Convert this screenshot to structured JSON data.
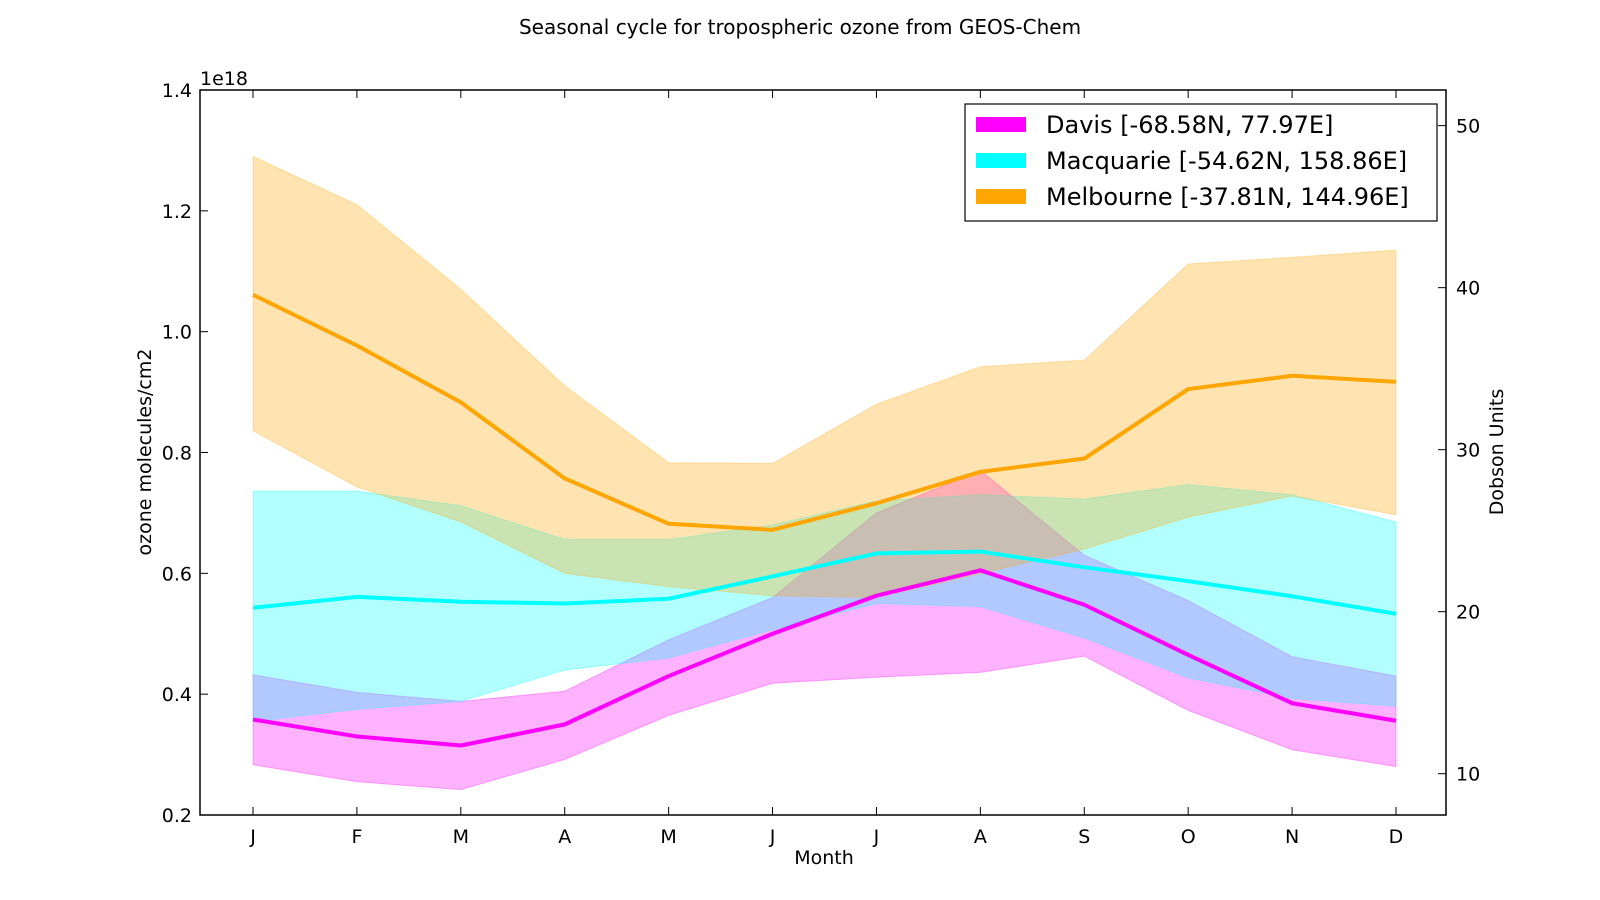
{
  "chart_data": {
    "type": "line",
    "title": "Seasonal cycle for tropospheric ozone from GEOS-Chem",
    "xlabel": "Month",
    "ylabel": "ozone molecules/cm2",
    "y_offset_label": "1e18",
    "y2label": "Dobson Units",
    "categories": [
      "J",
      "F",
      "M",
      "A",
      "M",
      "J",
      "J",
      "A",
      "S",
      "O",
      "N",
      "D"
    ],
    "ylim": [
      0.2,
      1.4
    ],
    "yticks": [
      "0.2",
      "0.4",
      "0.6",
      "0.8",
      "1.0",
      "1.2",
      "1.4"
    ],
    "y2lim": [
      7.45,
      52.2
    ],
    "y2ticks": [
      "10",
      "20",
      "30",
      "40",
      "50"
    ],
    "grid": false,
    "legend_position": "top-right",
    "series": [
      {
        "name": "Davis [-68.58N, 77.97E]",
        "color": "#ff00ff",
        "values": [
          0.358,
          0.33,
          0.315,
          0.35,
          0.43,
          0.5,
          0.563,
          0.605,
          0.548,
          0.465,
          0.385,
          0.356
        ],
        "lower": [
          0.283,
          0.255,
          0.242,
          0.292,
          0.365,
          0.418,
          0.428,
          0.436,
          0.463,
          0.373,
          0.308,
          0.28
        ],
        "upper": [
          0.432,
          0.403,
          0.388,
          0.405,
          0.49,
          0.56,
          0.7,
          0.77,
          0.63,
          0.555,
          0.462,
          0.43
        ]
      },
      {
        "name": "Macquarie [-54.62N, 158.86E]",
        "color": "#00ffff",
        "values": [
          0.543,
          0.561,
          0.553,
          0.55,
          0.558,
          0.595,
          0.633,
          0.636,
          0.61,
          0.587,
          0.562,
          0.533
        ],
        "lower": [
          0.355,
          0.375,
          0.388,
          0.44,
          0.46,
          0.507,
          0.55,
          0.545,
          0.493,
          0.427,
          0.393,
          0.38
        ],
        "upper": [
          0.736,
          0.736,
          0.712,
          0.656,
          0.656,
          0.68,
          0.72,
          0.73,
          0.723,
          0.747,
          0.73,
          0.685
        ]
      },
      {
        "name": "Melbourne [-37.81N, 144.96E]",
        "color": "#ffa500",
        "values": [
          1.061,
          0.977,
          0.883,
          0.757,
          0.682,
          0.672,
          0.716,
          0.768,
          0.79,
          0.905,
          0.927,
          0.917
        ],
        "lower": [
          0.836,
          0.743,
          0.685,
          0.6,
          0.578,
          0.563,
          0.56,
          0.6,
          0.64,
          0.693,
          0.728,
          0.697
        ],
        "upper": [
          1.29,
          1.21,
          1.07,
          0.91,
          0.783,
          0.782,
          0.88,
          0.942,
          0.953,
          1.112,
          1.123,
          1.135
        ]
      }
    ]
  }
}
